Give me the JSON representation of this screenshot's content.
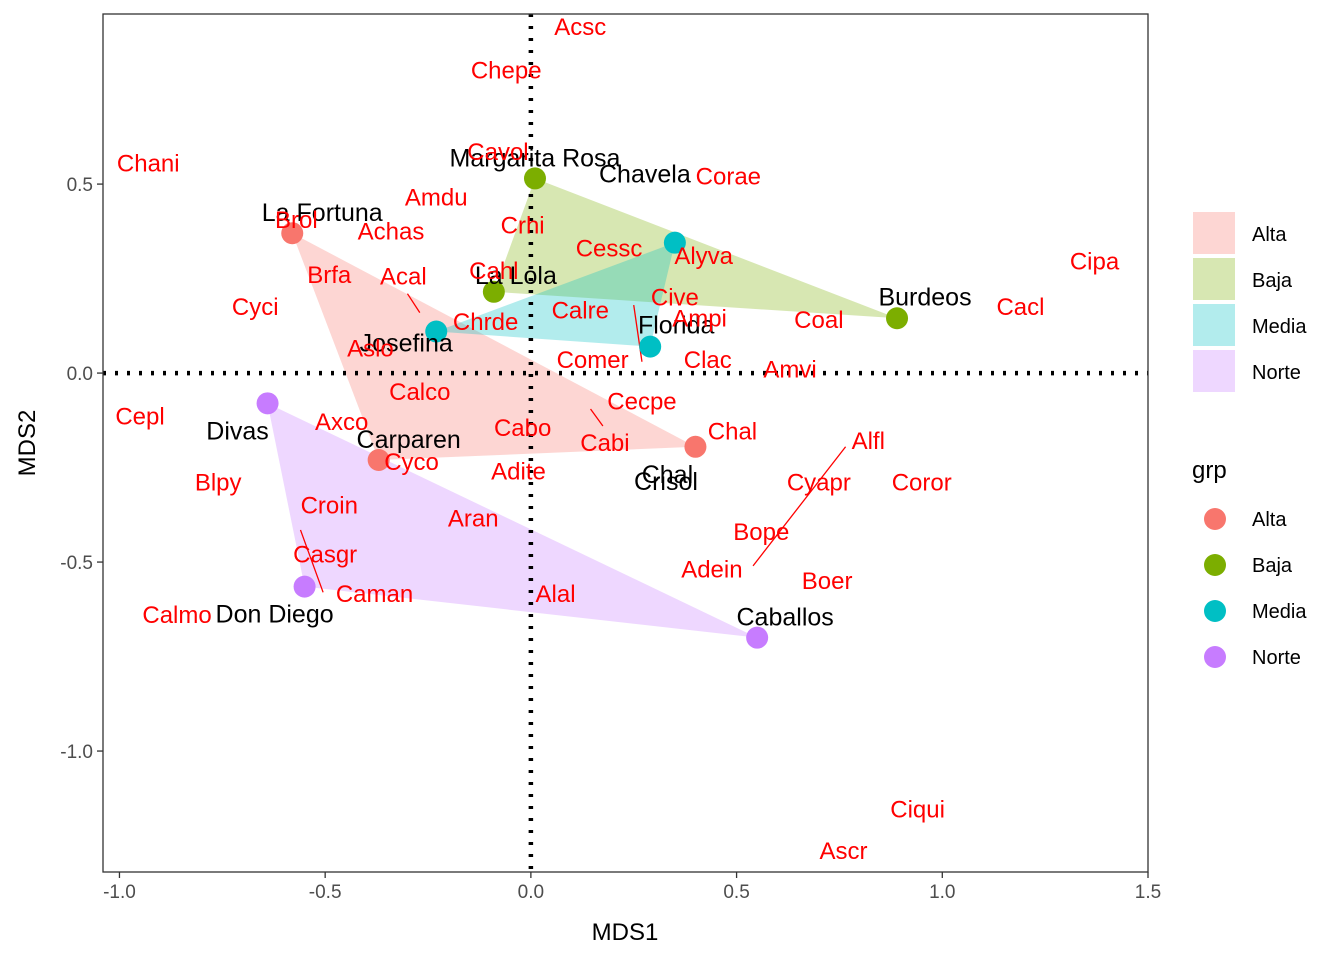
{
  "chart_data": {
    "type": "scatter",
    "xlabel": "MDS1",
    "ylabel": "MDS2",
    "xlim": [
      -1.04,
      1.5
    ],
    "ylim": [
      -1.32,
      0.95
    ],
    "x_ticks": [
      -1.0,
      -0.5,
      0.0,
      0.5,
      1.0,
      1.5
    ],
    "x_tick_labels": [
      "-1.0",
      "-0.5",
      "0.0",
      "0.5",
      "1.0",
      "1.5"
    ],
    "y_ticks": [
      -1.0,
      -0.5,
      0.0,
      0.5
    ],
    "y_tick_labels": [
      "-1.0",
      "-0.5",
      "0.0",
      "0.5"
    ],
    "grid": false,
    "reference_lines": {
      "x": 0,
      "y": 0,
      "style": "dotted"
    },
    "legend": {
      "placement": "right",
      "fill_key": [
        "Alta",
        "Baja",
        "Media",
        "Norte"
      ],
      "point_title": "grp",
      "point_key": [
        "Alta",
        "Baja",
        "Media",
        "Norte"
      ]
    },
    "groups": [
      {
        "name": "Alta",
        "color": "#F8766D",
        "hull_fill": "#F8766D"
      },
      {
        "name": "Baja",
        "color": "#7CAE00",
        "hull_fill": "#7CAE00"
      },
      {
        "name": "Media",
        "color": "#00BFC4",
        "hull_fill": "#00BFC4"
      },
      {
        "name": "Norte",
        "color": "#C77CFF",
        "hull_fill": "#C77CFF"
      }
    ],
    "sites": [
      {
        "label": "La Fortuna",
        "x": -0.58,
        "y": 0.37,
        "group": "Alta"
      },
      {
        "label": "Josefina",
        "x": -0.23,
        "y": 0.11,
        "group": "Media"
      },
      {
        "label": "Carparen",
        "x": -0.37,
        "y": -0.23,
        "group": "Alta"
      },
      {
        "label": "Chal",
        "x": 0.4,
        "y": -0.195,
        "group": "Alta"
      },
      {
        "label": "Margarita Rosa",
        "x": 0.01,
        "y": 0.515,
        "group": "Baja"
      },
      {
        "label": "La Lola",
        "x": -0.09,
        "y": 0.215,
        "group": "Baja"
      },
      {
        "label": "Burdeos",
        "x": 0.89,
        "y": 0.145,
        "group": "Baja"
      },
      {
        "label": "Chavela",
        "x": 0.35,
        "y": 0.345,
        "group": "Media"
      },
      {
        "label": "Florida",
        "x": 0.29,
        "y": 0.07,
        "group": "Media"
      },
      {
        "label": "Divas",
        "x": -0.64,
        "y": -0.08,
        "group": "Norte"
      },
      {
        "label": "Don Diego",
        "x": -0.55,
        "y": -0.565,
        "group": "Norte"
      },
      {
        "label": "Caballos",
        "x": 0.55,
        "y": -0.7,
        "group": "Norte"
      },
      {
        "label": "Crisol",
        "x": null,
        "y": null,
        "group": null
      }
    ],
    "species": [
      {
        "label": "Acsc",
        "x": 0.12,
        "y": 0.915
      },
      {
        "label": "Chepe",
        "x": -0.06,
        "y": 0.8
      },
      {
        "label": "Chani",
        "x": -0.93,
        "y": 0.555
      },
      {
        "label": "Cavol",
        "x": -0.08,
        "y": 0.585
      },
      {
        "label": "Corae",
        "x": 0.48,
        "y": 0.52
      },
      {
        "label": "Amdu",
        "x": -0.23,
        "y": 0.465
      },
      {
        "label": "Brol",
        "x": -0.57,
        "y": 0.405
      },
      {
        "label": "Crhi",
        "x": -0.02,
        "y": 0.39
      },
      {
        "label": "Achas",
        "x": -0.34,
        "y": 0.375
      },
      {
        "label": "Cessc",
        "x": 0.19,
        "y": 0.33
      },
      {
        "label": "Alyva",
        "x": 0.42,
        "y": 0.31
      },
      {
        "label": "Cipa",
        "x": 1.37,
        "y": 0.295
      },
      {
        "label": "Cahl",
        "x": -0.09,
        "y": 0.27
      },
      {
        "label": "Brfa",
        "x": -0.49,
        "y": 0.26
      },
      {
        "label": "Acal",
        "x": -0.31,
        "y": 0.255
      },
      {
        "label": "Cive",
        "x": 0.35,
        "y": 0.2
      },
      {
        "label": "Cyci",
        "x": -0.67,
        "y": 0.175
      },
      {
        "label": "Cacl",
        "x": 1.19,
        "y": 0.175
      },
      {
        "label": "Calre",
        "x": 0.12,
        "y": 0.165
      },
      {
        "label": "Coal",
        "x": 0.7,
        "y": 0.14
      },
      {
        "label": "Ampi",
        "x": 0.41,
        "y": 0.145
      },
      {
        "label": "Chrde",
        "x": -0.11,
        "y": 0.135
      },
      {
        "label": "Aslo",
        "x": -0.39,
        "y": 0.065
      },
      {
        "label": "Comer",
        "x": 0.15,
        "y": 0.035
      },
      {
        "label": "Clac",
        "x": 0.43,
        "y": 0.035
      },
      {
        "label": "Amvi",
        "x": 0.63,
        "y": 0.01
      },
      {
        "label": "Calco",
        "x": -0.27,
        "y": -0.05
      },
      {
        "label": "Cecpe",
        "x": 0.27,
        "y": -0.075
      },
      {
        "label": "Cepl",
        "x": -0.95,
        "y": -0.115
      },
      {
        "label": "Axco",
        "x": -0.46,
        "y": -0.13
      },
      {
        "label": "Cabo",
        "x": -0.02,
        "y": -0.145
      },
      {
        "label": "Chal",
        "x": 0.49,
        "y": -0.155
      },
      {
        "label": "Alfl",
        "x": 0.82,
        "y": -0.18
      },
      {
        "label": "Cabi",
        "x": 0.18,
        "y": -0.185
      },
      {
        "label": "Cyco",
        "x": -0.29,
        "y": -0.235
      },
      {
        "label": "Adite",
        "x": -0.03,
        "y": -0.26
      },
      {
        "label": "Blpy",
        "x": -0.76,
        "y": -0.29
      },
      {
        "label": "Cyapr",
        "x": 0.7,
        "y": -0.29
      },
      {
        "label": "Coror",
        "x": 0.95,
        "y": -0.29
      },
      {
        "label": "Croin",
        "x": -0.49,
        "y": -0.35
      },
      {
        "label": "Aran",
        "x": -0.14,
        "y": -0.385
      },
      {
        "label": "Bope",
        "x": 0.56,
        "y": -0.42
      },
      {
        "label": "Casgr",
        "x": -0.5,
        "y": -0.48
      },
      {
        "label": "Adein",
        "x": 0.44,
        "y": -0.52
      },
      {
        "label": "Boer",
        "x": 0.72,
        "y": -0.55
      },
      {
        "label": "Caman",
        "x": -0.38,
        "y": -0.585
      },
      {
        "label": "Alal",
        "x": 0.06,
        "y": -0.585
      },
      {
        "label": "Calmo",
        "x": -0.86,
        "y": -0.64
      },
      {
        "label": "Ciqui",
        "x": 0.94,
        "y": -1.155
      },
      {
        "label": "Ascr",
        "x": 0.76,
        "y": -1.265
      }
    ]
  }
}
